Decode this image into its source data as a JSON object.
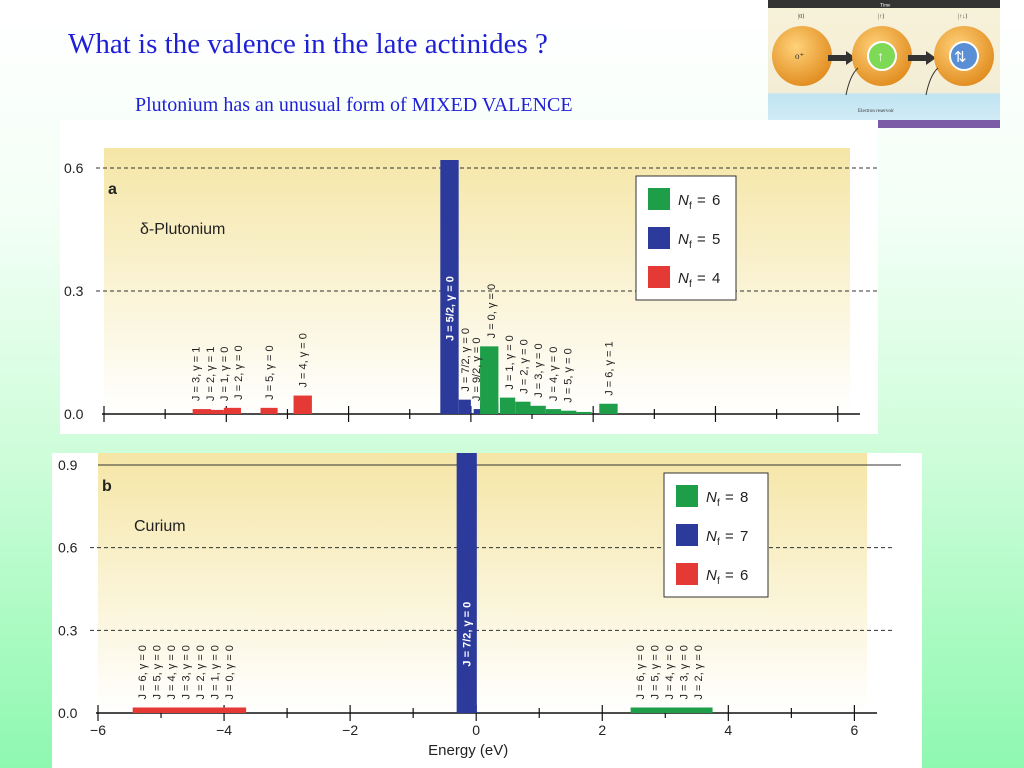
{
  "slide": {
    "title": "What is the valence in the late actinides ?",
    "subtitle": "Plutonium has an unusual form of MIXED VALENCE"
  },
  "thumbnail": {
    "time_label": "Time",
    "state_labels": [
      "|0⟩",
      "|↑⟩",
      "|↑↓⟩"
    ],
    "reservoir_label": "Electron reservoir",
    "colors": {
      "sphere": "#f2a23a",
      "inner": "#7ed957",
      "inner_blue": "#5a8fd6",
      "bar": "#333333"
    }
  },
  "colors": {
    "green": "#1f9e4a",
    "blue": "#2b3a9b",
    "red": "#e53935",
    "bg_top": "#f5e6a6",
    "bg_bottom": "#ffffff"
  },
  "chart_data": [
    {
      "type": "bar",
      "panel_label": "a",
      "title": "δ-Plutonium",
      "xlim": [
        -6,
        6.2
      ],
      "ylim": [
        0,
        0.6
      ],
      "yticks": [
        0.0,
        0.3,
        0.6
      ],
      "ytick_labels": [
        "0.0",
        "0.3",
        "0.6"
      ],
      "dashed_at": [
        0.3,
        0.6
      ],
      "legend": [
        {
          "nf": "6",
          "color": "#1f9e4a"
        },
        {
          "nf": "5",
          "color": "#2b3a9b"
        },
        {
          "nf": "4",
          "color": "#e53935"
        }
      ],
      "series": [
        {
          "nf": 4,
          "color": "#e53935",
          "points": [
            {
              "x": -4.4,
              "w": 0.3,
              "y": 0.012
            },
            {
              "x": -4.15,
              "w": 0.22,
              "y": 0.01
            },
            {
              "x": -3.9,
              "w": 0.28,
              "y": 0.015
            },
            {
              "x": -3.3,
              "w": 0.28,
              "y": 0.015
            },
            {
              "x": -2.75,
              "w": 0.3,
              "y": 0.045
            }
          ]
        },
        {
          "nf": 5,
          "color": "#2b3a9b",
          "points": [
            {
              "x": -0.35,
              "w": 0.3,
              "y": 0.62
            },
            {
              "x": -0.1,
              "w": 0.2,
              "y": 0.035
            },
            {
              "x": 0.12,
              "w": 0.15,
              "y": 0.012
            },
            {
              "x": 0.3,
              "w": 0.3,
              "y": 0.025
            }
          ]
        },
        {
          "nf": 6,
          "color": "#1f9e4a",
          "points": [
            {
              "x": 0.3,
              "w": 0.3,
              "y": 0.165
            },
            {
              "x": 0.6,
              "w": 0.25,
              "y": 0.04
            },
            {
              "x": 0.85,
              "w": 0.25,
              "y": 0.03
            },
            {
              "x": 1.1,
              "w": 0.25,
              "y": 0.02
            },
            {
              "x": 1.35,
              "w": 0.25,
              "y": 0.012
            },
            {
              "x": 1.6,
              "w": 0.25,
              "y": 0.008
            },
            {
              "x": 1.85,
              "w": 0.25,
              "y": 0.005
            },
            {
              "x": 2.25,
              "w": 0.3,
              "y": 0.025
            }
          ]
        }
      ],
      "annotations": [
        {
          "x": -4.5,
          "text": "J = 3, γ = 1",
          "color": "#222222",
          "y": 0.012
        },
        {
          "x": -4.27,
          "text": "J = 2, γ = 1",
          "color": "#222222",
          "y": 0.012
        },
        {
          "x": -4.04,
          "text": "J = 1, γ = 0",
          "color": "#222222",
          "y": 0.012
        },
        {
          "x": -3.81,
          "text": "J = 2, γ = 0",
          "color": "#222222",
          "y": 0.015
        },
        {
          "x": -3.3,
          "text": "J = 5, γ = 0",
          "color": "#222222",
          "y": 0.015
        },
        {
          "x": -2.75,
          "text": "J = 4, γ = 0",
          "color": "#222222",
          "y": 0.045
        },
        {
          "x": -0.35,
          "text": "J = 5/2, γ = 0",
          "color": "#ffffff",
          "y": 0.3,
          "inside": true
        },
        {
          "x": -0.1,
          "text": "J = 7/2, γ = 0",
          "color": "#222222",
          "y": 0.035
        },
        {
          "x": 0.08,
          "text": "J = 9/2, γ = 0",
          "color": "#222222",
          "y": 0.012
        },
        {
          "x": 0.33,
          "text": "J = 0, γ = 0",
          "color": "#222222",
          "y": 0.165
        },
        {
          "x": 0.62,
          "text": "J = 1, γ = 0",
          "color": "#222222",
          "y": 0.04
        },
        {
          "x": 0.86,
          "text": "J = 2, γ = 0",
          "color": "#222222",
          "y": 0.03
        },
        {
          "x": 1.1,
          "text": "J = 3, γ = 0",
          "color": "#222222",
          "y": 0.02
        },
        {
          "x": 1.34,
          "text": "J = 4, γ = 0",
          "color": "#222222",
          "y": 0.012
        },
        {
          "x": 1.58,
          "text": "J = 5, γ = 0",
          "color": "#222222",
          "y": 0.008
        },
        {
          "x": 2.25,
          "text": "J = 6, γ = 1",
          "color": "#222222",
          "y": 0.025
        }
      ]
    },
    {
      "type": "bar",
      "panel_label": "b",
      "title": "Curium",
      "xlabel": "Energy (eV)",
      "xlim": [
        -6,
        6.2
      ],
      "ylim": [
        0,
        0.9
      ],
      "xticks": [
        -6,
        -4,
        -2,
        0,
        2,
        4,
        6
      ],
      "xtick_labels": [
        "−6",
        "−4",
        "−2",
        "0",
        "2",
        "4",
        "6"
      ],
      "yticks": [
        0.0,
        0.3,
        0.6,
        0.9
      ],
      "ytick_labels": [
        "0.0",
        "0.3",
        "0.6",
        "0.9"
      ],
      "dashed_at": [
        0.3,
        0.6
      ],
      "legend": [
        {
          "nf": "8",
          "color": "#1f9e4a"
        },
        {
          "nf": "7",
          "color": "#2b3a9b"
        },
        {
          "nf": "6",
          "color": "#e53935"
        }
      ],
      "series": [
        {
          "nf": 6,
          "color": "#e53935",
          "points": [
            {
              "x": -4.55,
              "w": 1.8,
              "y": 0.02
            }
          ]
        },
        {
          "nf": 7,
          "color": "#2b3a9b",
          "points": [
            {
              "x": -0.15,
              "w": 0.32,
              "y": 0.95
            }
          ]
        },
        {
          "nf": 8,
          "color": "#1f9e4a",
          "points": [
            {
              "x": 3.1,
              "w": 1.3,
              "y": 0.02
            }
          ]
        }
      ],
      "annotations": [
        {
          "x": -5.3,
          "text": "J = 6, γ = 0",
          "color": "#222222",
          "y": 0.02
        },
        {
          "x": -5.07,
          "text": "J = 5, γ = 0",
          "color": "#222222",
          "y": 0.02
        },
        {
          "x": -4.84,
          "text": "J = 4, γ = 0",
          "color": "#222222",
          "y": 0.02
        },
        {
          "x": -4.61,
          "text": "J = 3, γ = 0",
          "color": "#222222",
          "y": 0.02
        },
        {
          "x": -4.38,
          "text": "J = 2, γ = 0",
          "color": "#222222",
          "y": 0.02
        },
        {
          "x": -4.15,
          "text": "J = 1, γ = 0",
          "color": "#222222",
          "y": 0.02
        },
        {
          "x": -3.92,
          "text": "J = 0, γ = 0",
          "color": "#222222",
          "y": 0.02
        },
        {
          "x": -0.15,
          "text": "J = 7/2, γ = 0",
          "color": "#ffffff",
          "y": 0.35,
          "inside": true
        },
        {
          "x": 2.6,
          "text": "J = 6, γ = 0",
          "color": "#222222",
          "y": 0.02
        },
        {
          "x": 2.83,
          "text": "J = 5, γ = 0",
          "color": "#222222",
          "y": 0.02
        },
        {
          "x": 3.06,
          "text": "J = 4, γ = 0",
          "color": "#222222",
          "y": 0.02
        },
        {
          "x": 3.29,
          "text": "J = 3, γ = 0",
          "color": "#222222",
          "y": 0.02
        },
        {
          "x": 3.52,
          "text": "J = 2, γ = 0",
          "color": "#222222",
          "y": 0.02
        }
      ]
    }
  ]
}
